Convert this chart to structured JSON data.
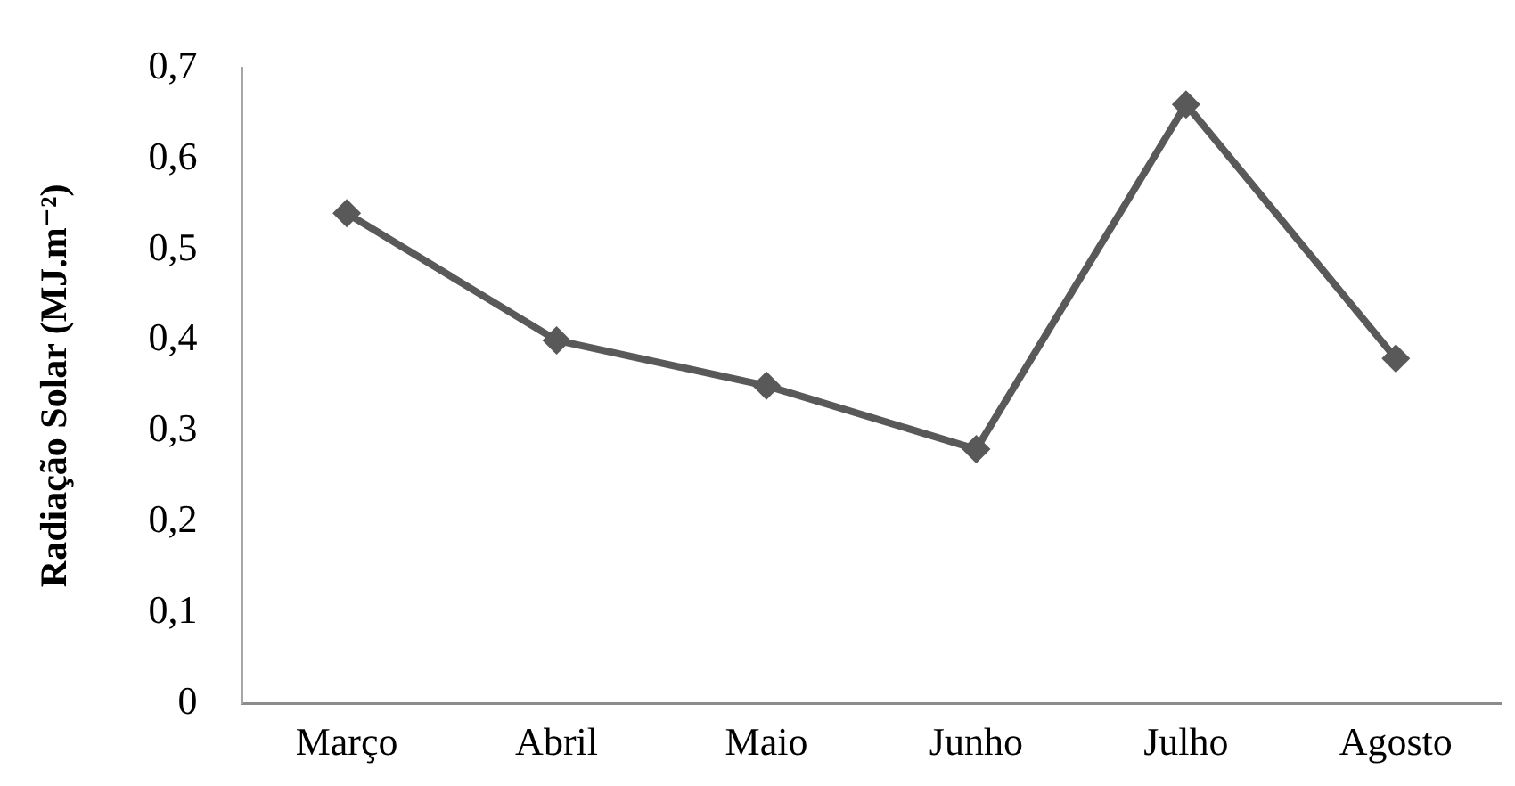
{
  "chart_data": {
    "type": "line",
    "categories": [
      "Março",
      "Abril",
      "Maio",
      "Junho",
      "Julho",
      "Agosto"
    ],
    "series": [
      {
        "color": "#595959",
        "values": [
          0.54,
          0.4,
          0.35,
          0.28,
          0.66,
          0.38
        ]
      }
    ],
    "ylabel": "Radiação Solar (MJ.m⁻²)",
    "ylim": [
      0,
      0.7
    ],
    "yticks": [
      0,
      {
        "value": 0.1,
        "label": "0,1"
      },
      {
        "value": 0.2,
        "label": "0,2"
      },
      {
        "value": 0.3,
        "label": "0,3"
      },
      {
        "value": 0.4,
        "label": "0,4"
      },
      {
        "value": 0.5,
        "label": "0,5"
      },
      {
        "value": 0.6,
        "label": "0,6"
      },
      {
        "value": 0.7,
        "label": "0,7"
      }
    ],
    "marker": "diamond",
    "grid": false,
    "legend": false
  }
}
